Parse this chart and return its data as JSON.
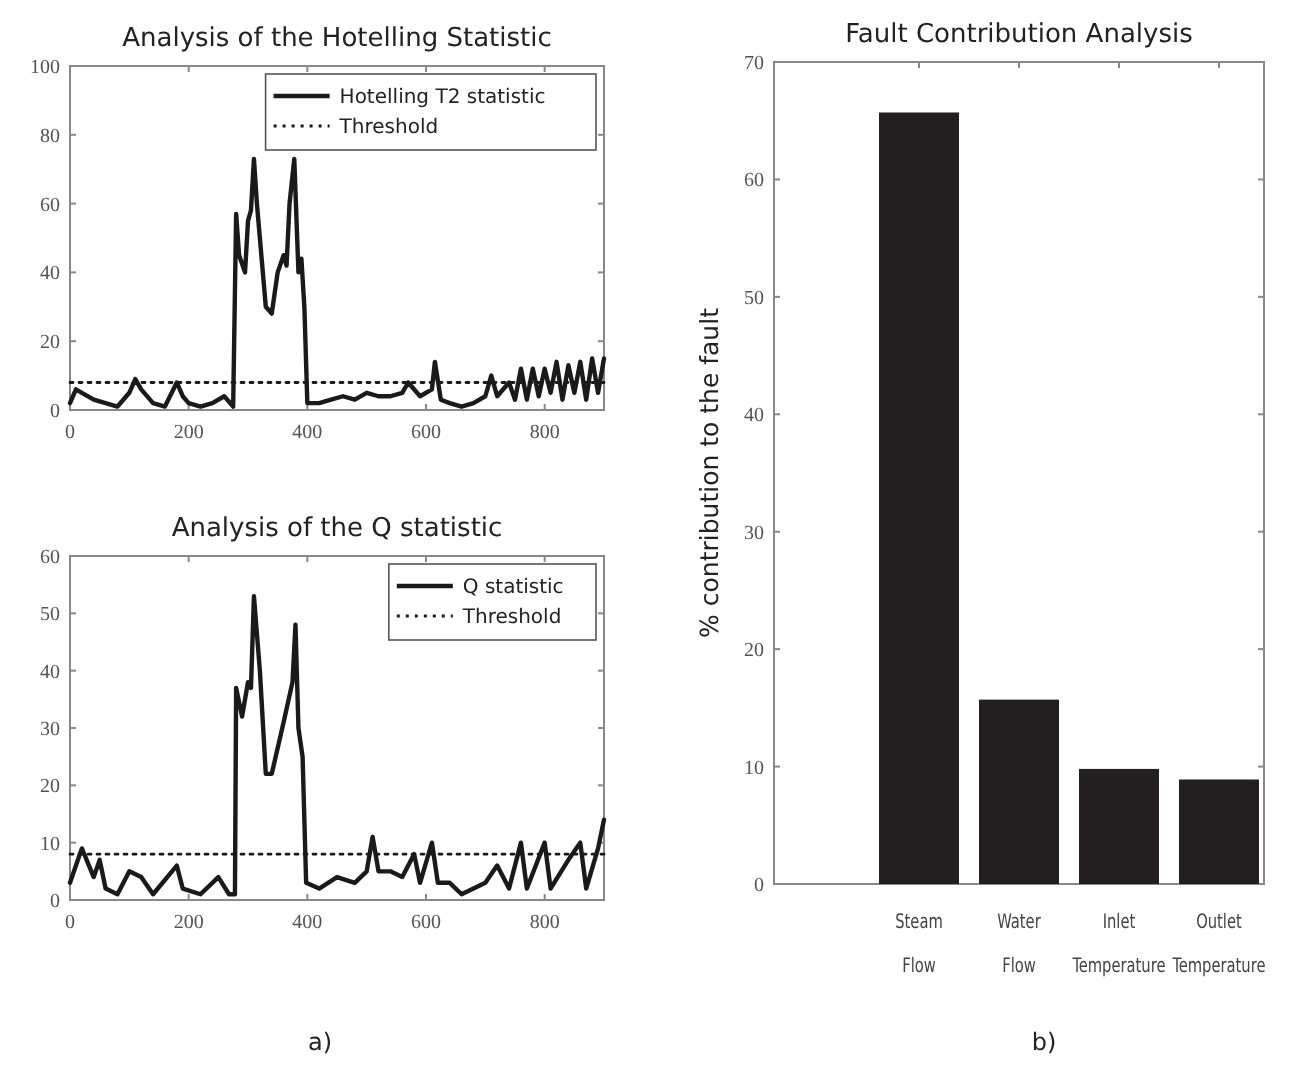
{
  "chart_data": [
    {
      "type": "line",
      "title": "Analysis of the Hotelling Statistic",
      "xlim": [
        0,
        900
      ],
      "xticks": [
        0,
        200,
        400,
        600,
        800
      ],
      "ylim": [
        0,
        100
      ],
      "yticks": [
        0,
        20,
        40,
        60,
        80,
        100
      ],
      "grid": false,
      "legend": "top right",
      "series": [
        {
          "name": "Hotelling T2 statistic",
          "color": "#1a1a1a",
          "line_style": "solid",
          "x": [
            0,
            10,
            20,
            40,
            60,
            80,
            100,
            110,
            120,
            140,
            160,
            180,
            190,
            200,
            220,
            240,
            260,
            275,
            280,
            285,
            295,
            300,
            305,
            310,
            315,
            320,
            330,
            340,
            350,
            360,
            365,
            370,
            378,
            385,
            390,
            395,
            400,
            420,
            440,
            460,
            480,
            500,
            520,
            540,
            560,
            570,
            590,
            610,
            615,
            625,
            640,
            660,
            680,
            700,
            710,
            720,
            740,
            750,
            760,
            770,
            780,
            790,
            800,
            810,
            820,
            830,
            840,
            850,
            860,
            870,
            880,
            890,
            900
          ],
          "values": [
            2,
            6,
            5,
            3,
            2,
            1,
            5,
            9,
            6,
            2,
            1,
            8,
            4,
            2,
            1,
            2,
            4,
            1,
            57,
            45,
            40,
            55,
            58,
            73,
            60,
            50,
            30,
            28,
            40,
            45,
            42,
            60,
            73,
            40,
            44,
            30,
            2,
            2,
            3,
            4,
            3,
            5,
            4,
            4,
            5,
            8,
            4,
            6,
            14,
            3,
            2,
            1,
            2,
            4,
            10,
            4,
            8,
            3,
            12,
            3,
            12,
            4,
            12,
            5,
            14,
            3,
            13,
            5,
            14,
            3,
            15,
            5,
            15
          ]
        },
        {
          "name": "Threshold",
          "color": "#1a1a1a",
          "line_style": "dotted",
          "x": [
            0,
            900
          ],
          "values": [
            8,
            8
          ]
        }
      ]
    },
    {
      "type": "line",
      "title": "Analysis of the Q statistic",
      "xlim": [
        0,
        900
      ],
      "xticks": [
        0,
        200,
        400,
        600,
        800
      ],
      "ylim": [
        0,
        60
      ],
      "yticks": [
        0,
        10,
        20,
        30,
        40,
        50,
        60
      ],
      "grid": false,
      "legend": "top right",
      "annotations": [
        "a)"
      ],
      "series": [
        {
          "name": "Q statistic",
          "color": "#1a1a1a",
          "line_style": "solid",
          "x": [
            0,
            20,
            40,
            50,
            60,
            80,
            100,
            120,
            140,
            180,
            190,
            220,
            250,
            268,
            278,
            280,
            290,
            300,
            305,
            310,
            320,
            330,
            340,
            360,
            375,
            380,
            385,
            392,
            398,
            420,
            450,
            480,
            500,
            510,
            520,
            540,
            560,
            580,
            590,
            610,
            620,
            640,
            660,
            680,
            700,
            720,
            740,
            760,
            770,
            800,
            810,
            840,
            860,
            870,
            890,
            900
          ],
          "values": [
            3,
            9,
            4,
            7,
            2,
            1,
            5,
            4,
            1,
            6,
            2,
            1,
            4,
            1,
            1,
            37,
            32,
            38,
            37,
            53,
            40,
            22,
            22,
            31,
            38,
            48,
            30,
            25,
            3,
            2,
            4,
            3,
            5,
            11,
            5,
            5,
            4,
            8,
            3,
            10,
            3,
            3,
            1,
            2,
            3,
            6,
            2,
            10,
            2,
            10,
            2,
            7,
            10,
            2,
            9,
            14
          ]
        },
        {
          "name": "Threshold",
          "color": "#1a1a1a",
          "line_style": "dotted",
          "x": [
            0,
            900
          ],
          "values": [
            8,
            8
          ]
        }
      ]
    },
    {
      "type": "bar",
      "title": "Fault Contribution Analysis",
      "ylabel": "% contribution to the fault",
      "categories": [
        "Steam Flow",
        "Water Flow",
        "Inlet Temperature",
        "Outlet Temperature"
      ],
      "values": [
        65.7,
        15.7,
        9.8,
        8.9
      ],
      "color": "#231f20",
      "ylim": [
        0,
        70
      ],
      "yticks": [
        0,
        10,
        20,
        30,
        40,
        50,
        60,
        70
      ],
      "grid": false,
      "annotations": [
        "b)"
      ]
    }
  ]
}
